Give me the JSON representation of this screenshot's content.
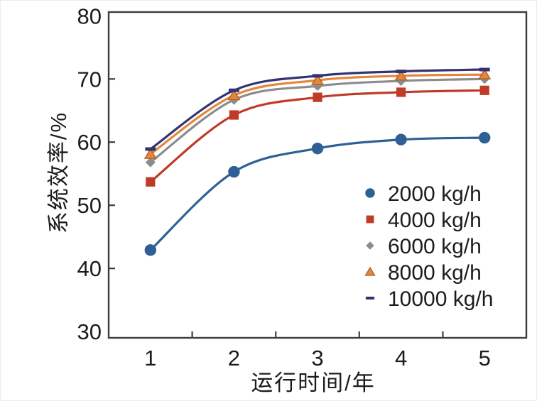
{
  "page": {
    "background": "#ffffff"
  },
  "chart_data": {
    "type": "line",
    "title": "",
    "xlabel": "运行时间/年",
    "ylabel": "系统效率/%",
    "x": [
      1,
      2,
      3,
      4,
      5
    ],
    "xlim": [
      0.5,
      5.5
    ],
    "ylim": [
      29,
      80.6
    ],
    "ytick_labels": [
      30,
      40,
      50,
      60,
      70,
      80
    ],
    "ytick_marks": [
      40,
      50,
      60,
      70
    ],
    "xtick_labels": [
      1,
      2,
      3,
      4,
      5
    ],
    "xtick_marks": [
      1.5,
      2.5,
      3.5,
      4.5
    ],
    "grid": false,
    "legend_position": "inside-lower-right",
    "axis_color": "#3d3d3d",
    "text_color": "#1c1c1c",
    "series": [
      {
        "name": "2000 kg/h",
        "marker": "circle",
        "color": "#2E6096",
        "values": [
          42.9,
          55.3,
          59.0,
          60.4,
          60.7
        ]
      },
      {
        "name": "4000 kg/h",
        "marker": "square",
        "color": "#BF3B27",
        "values": [
          53.7,
          64.3,
          67.1,
          67.9,
          68.2
        ]
      },
      {
        "name": "6000 kg/h",
        "marker": "diamond",
        "color": "#8C8C8E",
        "values": [
          56.8,
          66.7,
          68.9,
          69.7,
          70.0
        ]
      },
      {
        "name": "8000 kg/h",
        "marker": "triangle",
        "color": "#E2873D",
        "marker_edge": "#B5601F",
        "values": [
          58.1,
          67.4,
          69.8,
          70.5,
          70.7
        ]
      },
      {
        "name": "10000 kg/h",
        "marker": "dash",
        "color": "#333373",
        "values": [
          58.9,
          68.2,
          70.5,
          71.2,
          71.5
        ]
      }
    ]
  }
}
